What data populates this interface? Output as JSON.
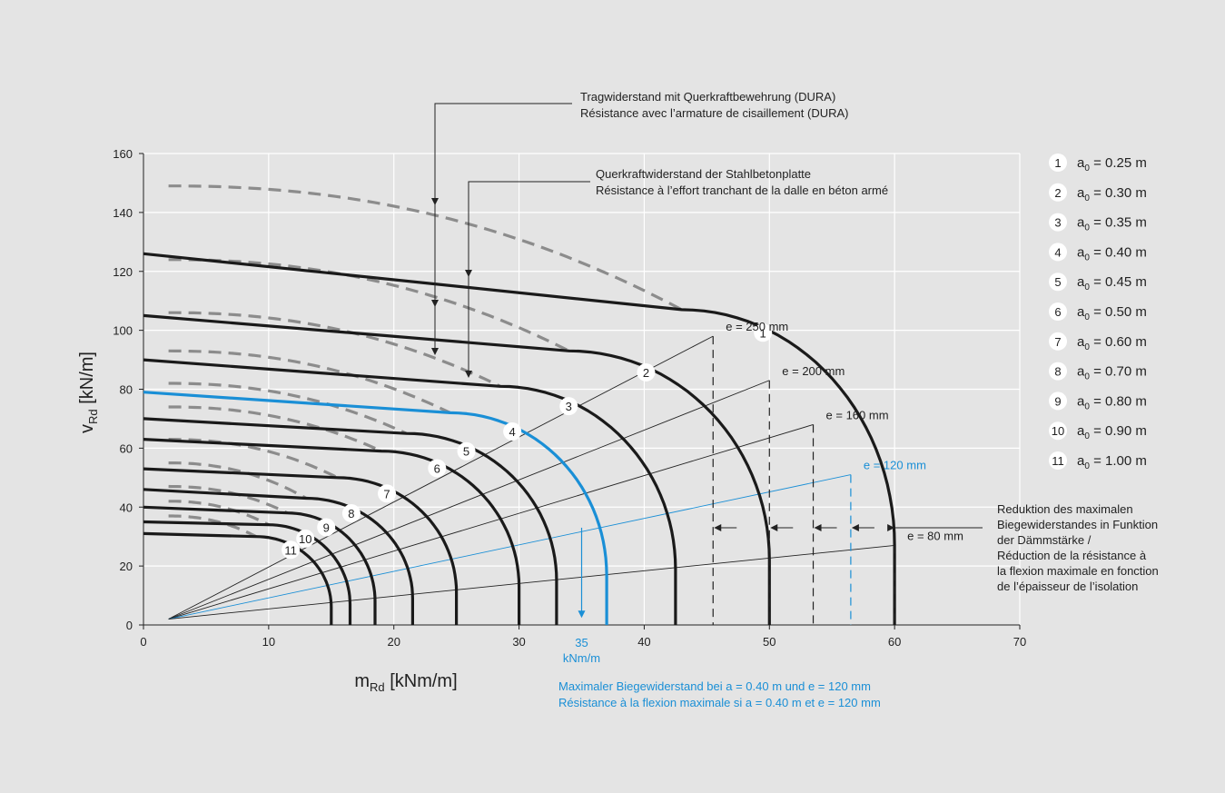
{
  "chart_data": {
    "type": "line",
    "xlabel": {
      "main": "m",
      "sub": "Rd",
      "unit": " [kNm/m]"
    },
    "ylabel": {
      "main": "v",
      "sub": "Rd",
      "unit": " [kN/m]"
    },
    "xlim": [
      0,
      70
    ],
    "ylim": [
      0,
      160
    ],
    "xticks": [
      "0",
      "10",
      "20",
      "30",
      "40",
      "50",
      "60",
      "70"
    ],
    "yticks": [
      "0",
      "20",
      "40",
      "60",
      "80",
      "100",
      "120",
      "140",
      "160"
    ],
    "grid": true,
    "colors": {
      "resistance": "#1a1a1a",
      "shear_limit": "#8c8c8c",
      "highlight": "#1a8fd6",
      "guide": "#222222"
    },
    "series": [
      {
        "id": "1",
        "label": "1",
        "a0_label": " = 0.25 m",
        "v0": 126,
        "knee": [
          43,
          107
        ],
        "mmax": 60,
        "bottom": 27,
        "limit_v0": 149
      },
      {
        "id": "2",
        "label": "2",
        "a0_label": " = 0.30 m",
        "v0": 105,
        "knee": [
          34,
          93
        ],
        "mmax": 50,
        "bottom": 22,
        "limit_v0": 124
      },
      {
        "id": "3",
        "label": "3",
        "a0_label": " = 0.35 m",
        "v0": 90,
        "knee": [
          28.5,
          81
        ],
        "mmax": 42.5,
        "bottom": 19,
        "limit_v0": 106
      },
      {
        "id": "4",
        "label": "4",
        "a0_label": " = 0.40 m",
        "v0": 79,
        "knee": [
          24.5,
          72
        ],
        "mmax": 37,
        "bottom": 17,
        "limit_v0": 93
      },
      {
        "id": "5",
        "label": "5",
        "a0_label": " = 0.45 m",
        "v0": 70,
        "knee": [
          21,
          65
        ],
        "mmax": 33,
        "bottom": 15,
        "limit_v0": 82
      },
      {
        "id": "6",
        "label": "6",
        "a0_label": " = 0.50 m",
        "v0": 63,
        "knee": [
          19,
          59
        ],
        "mmax": 30,
        "bottom": 13,
        "limit_v0": 74
      },
      {
        "id": "7",
        "label": "7",
        "a0_label": " = 0.60 m",
        "v0": 53,
        "knee": [
          15.5,
          50
        ],
        "mmax": 25,
        "bottom": 11,
        "limit_v0": 63
      },
      {
        "id": "8",
        "label": "8",
        "a0_label": " = 0.70 m",
        "v0": 46,
        "knee": [
          13,
          43
        ],
        "mmax": 21.5,
        "bottom": 9,
        "limit_v0": 55
      },
      {
        "id": "9",
        "label": "9",
        "a0_label": " = 0.80 m",
        "v0": 40,
        "knee": [
          11.5,
          38
        ],
        "mmax": 18.5,
        "bottom": 8,
        "limit_v0": 47
      },
      {
        "id": "10",
        "label": "10",
        "a0_label": " = 0.90 m",
        "v0": 35,
        "knee": [
          10,
          34
        ],
        "mmax": 16.5,
        "bottom": 7,
        "limit_v0": 42
      },
      {
        "id": "11",
        "label": "11",
        "a0_label": " = 1.00 m",
        "v0": 31,
        "knee": [
          9,
          30
        ],
        "mmax": 15,
        "bottom": 6,
        "limit_v0": 37
      }
    ],
    "legend_sub": "0",
    "insulation_lines": [
      {
        "label": "e = 250 mm",
        "m": 45.5,
        "v": 98,
        "blue": false
      },
      {
        "label": "e = 200 mm",
        "m": 50,
        "v": 83,
        "blue": false
      },
      {
        "label": "e = 160 mm",
        "m": 53.5,
        "v": 68,
        "blue": false
      },
      {
        "label": "e = 120 mm",
        "m": 56.5,
        "v": 51,
        "blue": true
      },
      {
        "label": "e = 80 mm",
        "m": 60,
        "v": 27,
        "blue": false
      }
    ],
    "annotations": {
      "dura_line1": "Tragwiderstand mit Querkraftbewehrung (DURA)",
      "dura_line2": "Résistance avec l’armature de cisaillement (DURA)",
      "slab_line1": "Querkraftwiderstand der Stahlbetonplatte",
      "slab_line2": "Résistance à l’effort tranchant de la dalle en béton armé",
      "reduction_lines": [
        "Reduktion des maximalen",
        "Biegewiderstandes in Funktion",
        "der Dämmstärke /",
        "Réduction de la résistance à",
        "la flexion maximale en fonction",
        "de l’épaisseur de l’isolation"
      ],
      "marker_value": "35",
      "marker_unit": "kNm/m",
      "example_line1": "Maximaler Biegewiderstand bei a = 0.40 m und e = 120 mm",
      "example_line2": "Résistance à la flexion maximale si a = 0.40 m et e = 120 mm"
    }
  }
}
